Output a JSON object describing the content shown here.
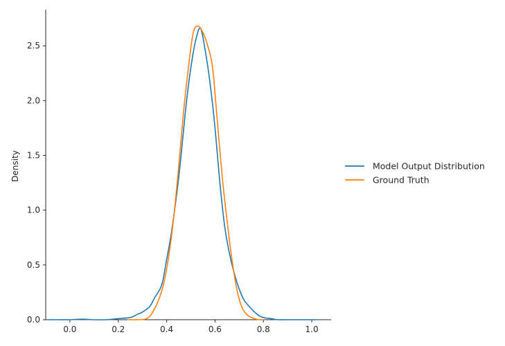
{
  "chart_data": {
    "type": "line",
    "title": "",
    "xlabel": "",
    "ylabel": "Density",
    "xlim": [
      -0.1,
      1.08
    ],
    "ylim": [
      0,
      2.83
    ],
    "xticks": [
      0.0,
      0.2,
      0.4,
      0.6,
      0.8,
      1.0
    ],
    "xtick_labels": [
      "0.0",
      "0.2",
      "0.4",
      "0.6",
      "0.8",
      "1.0"
    ],
    "yticks": [
      0.0,
      0.5,
      1.0,
      1.5,
      2.0,
      2.5
    ],
    "ytick_labels": [
      "0.0",
      "0.5",
      "1.0",
      "1.5",
      "2.0",
      "2.5"
    ],
    "grid": false,
    "legend_position": "right",
    "series": [
      {
        "name": "Model Output Distribution",
        "color": "#1f77b4",
        "x": [
          -0.09,
          -0.05,
          0.0,
          0.05,
          0.1,
          0.15,
          0.2,
          0.25,
          0.28,
          0.3,
          0.33,
          0.35,
          0.38,
          0.4,
          0.42,
          0.45,
          0.48,
          0.5,
          0.52,
          0.54,
          0.56,
          0.58,
          0.6,
          0.62,
          0.64,
          0.66,
          0.68,
          0.7,
          0.72,
          0.75,
          0.78,
          0.8,
          0.83,
          0.86,
          0.9,
          0.95,
          1.02
        ],
        "y": [
          0.0,
          0.0,
          0.0,
          0.005,
          0.0,
          0.0,
          0.01,
          0.02,
          0.05,
          0.07,
          0.12,
          0.2,
          0.32,
          0.55,
          0.8,
          1.3,
          1.95,
          2.3,
          2.55,
          2.66,
          2.45,
          2.15,
          1.75,
          1.25,
          0.85,
          0.6,
          0.42,
          0.28,
          0.18,
          0.1,
          0.04,
          0.02,
          0.01,
          0.0,
          0.0,
          0.0,
          0.0
        ]
      },
      {
        "name": "Ground Truth",
        "color": "#ff7f0e",
        "x": [
          0.24,
          0.28,
          0.31,
          0.33,
          0.35,
          0.37,
          0.39,
          0.41,
          0.43,
          0.45,
          0.47,
          0.49,
          0.51,
          0.53,
          0.55,
          0.57,
          0.59,
          0.61,
          0.63,
          0.65,
          0.67,
          0.69,
          0.71,
          0.73,
          0.75,
          0.77,
          0.79,
          0.8
        ],
        "y": [
          0.0,
          0.0,
          0.005,
          0.03,
          0.1,
          0.2,
          0.35,
          0.6,
          0.95,
          1.4,
          1.9,
          2.3,
          2.62,
          2.68,
          2.62,
          2.5,
          2.3,
          1.8,
          1.3,
          0.9,
          0.55,
          0.28,
          0.12,
          0.05,
          0.02,
          0.005,
          0.0,
          0.0
        ]
      }
    ]
  }
}
